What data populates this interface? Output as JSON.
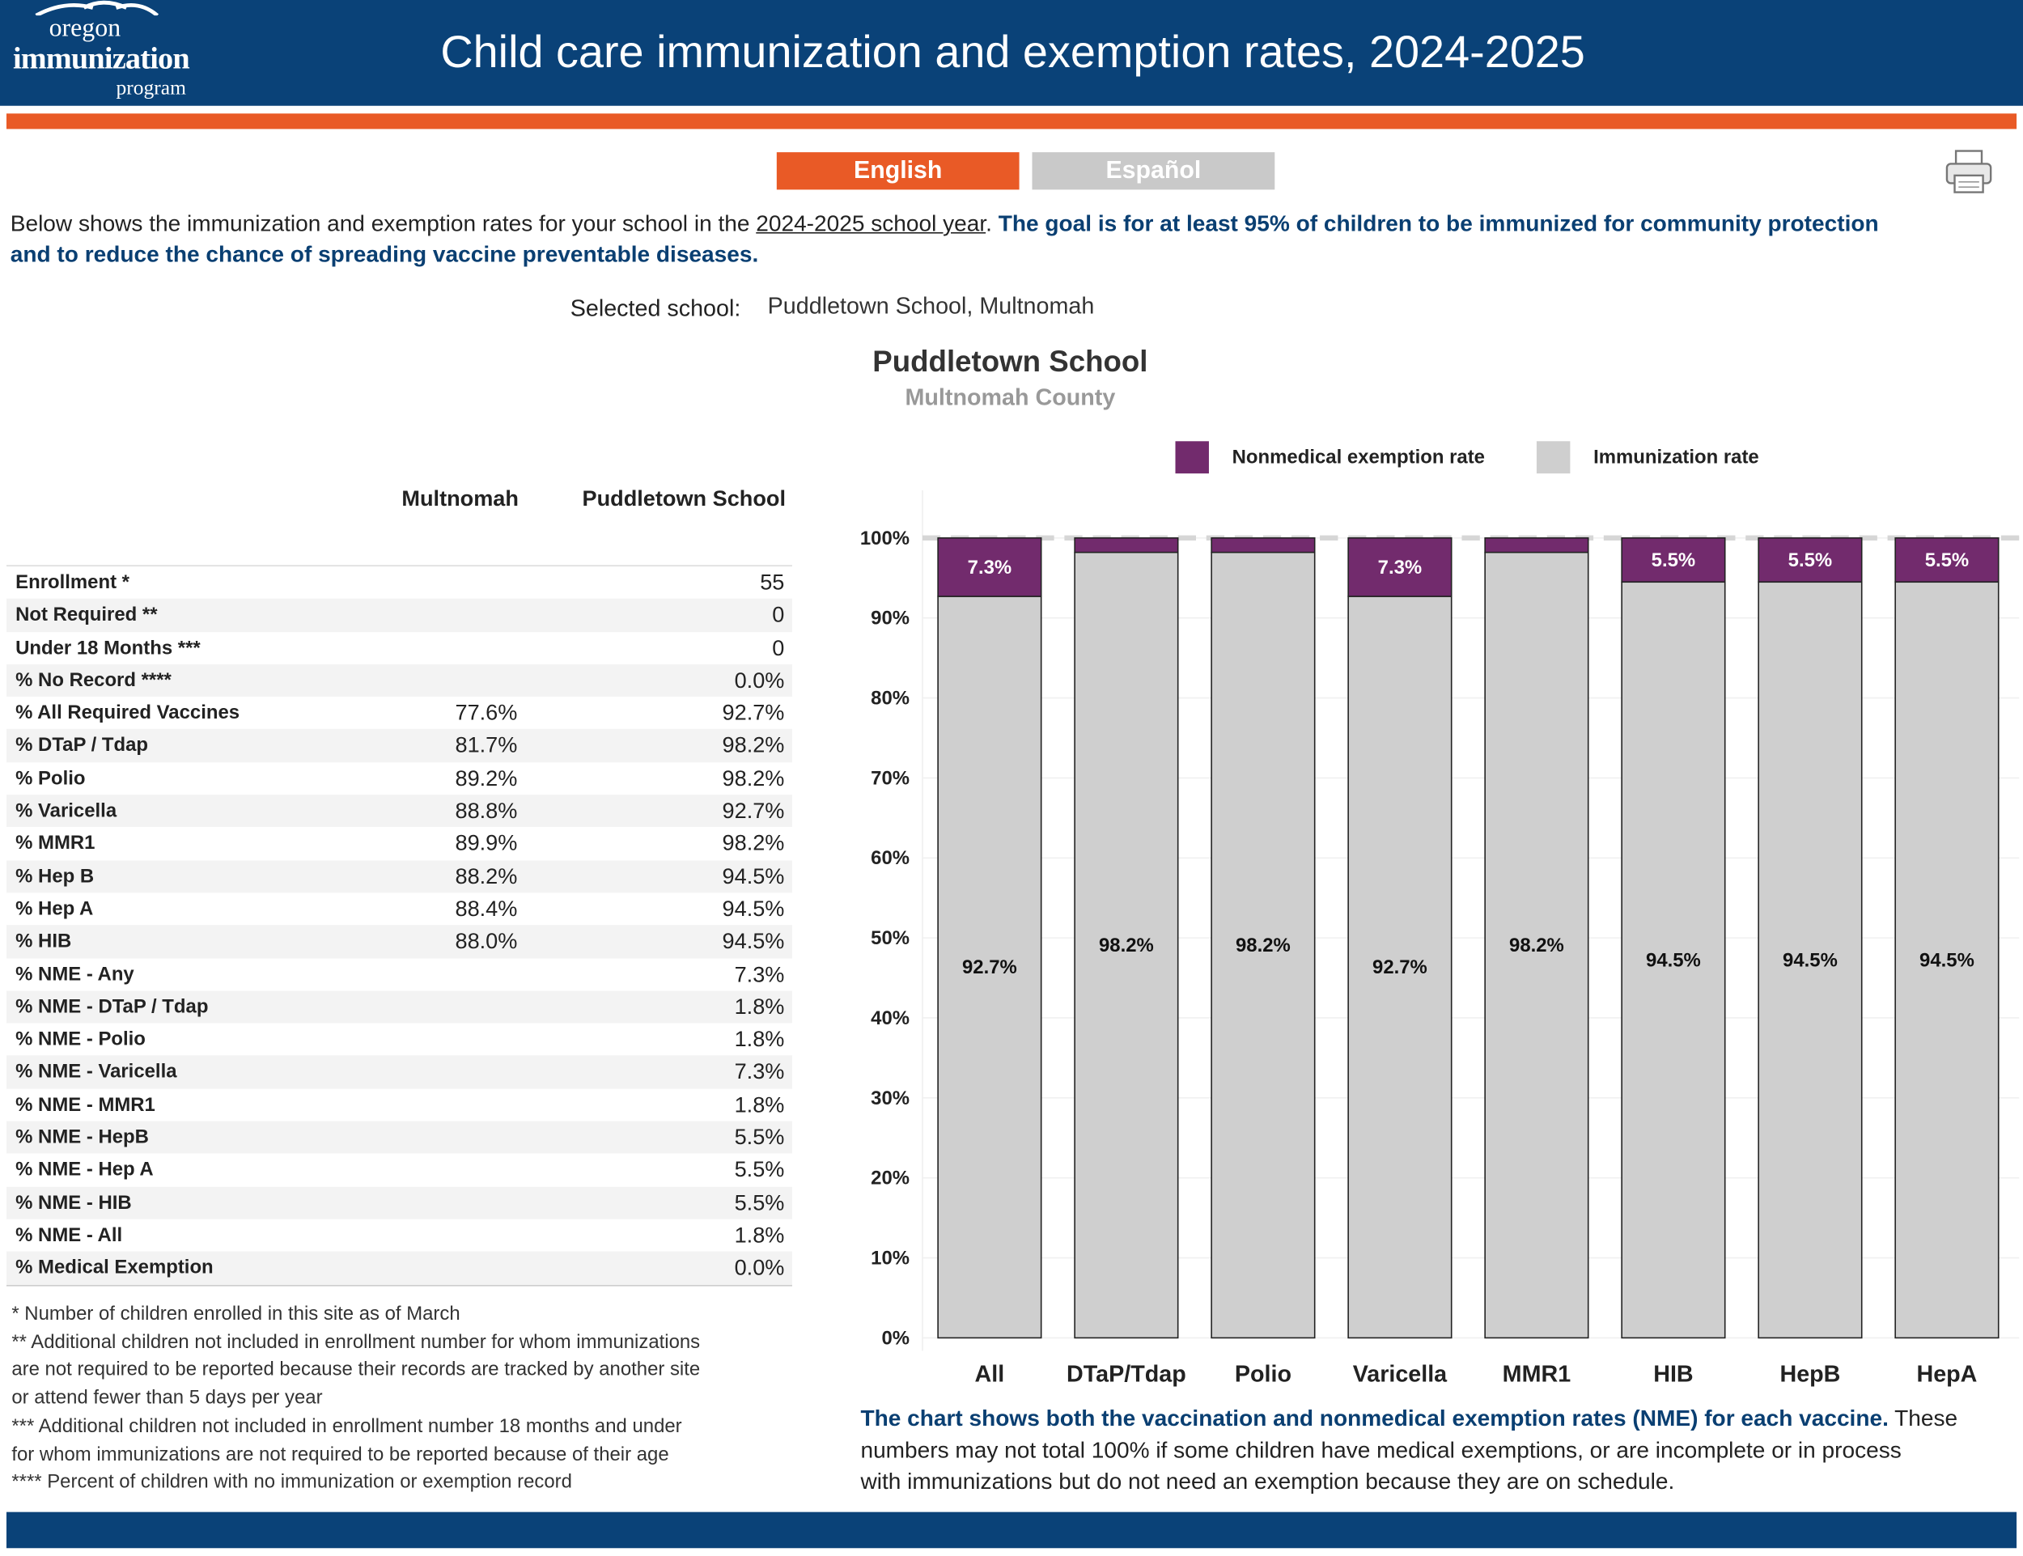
{
  "header": {
    "logo_text": [
      "oregon",
      "immunization",
      "program"
    ],
    "title": "Child care immunization and exemption rates, 2024-2025",
    "color": "#0a4278",
    "accent": "#e95a26"
  },
  "language": {
    "english": "English",
    "spanish": "Español"
  },
  "toolbar": {
    "print_icon": "printer-icon"
  },
  "intro": {
    "line1_a": "Below shows the immunization and exemption rates for your school in the ",
    "line1_link": "2024-2025 school year",
    "line1_b": ". ",
    "line1_goal": "The goal is for at least 95% of children to be immunized for community protection",
    "line2_goal": "and to reduce the chance of spreading vaccine preventable diseases."
  },
  "selection": {
    "label": "Selected school:",
    "value": "Puddletown School, Multnomah"
  },
  "school": {
    "name": "Puddletown School",
    "county": "Multnomah County"
  },
  "legend": [
    {
      "label": "Nonmedical exemption rate",
      "color": "#722b6d"
    },
    {
      "label": "Immunization rate",
      "color": "#cfcfcf"
    }
  ],
  "table": {
    "columns": [
      "Multnomah",
      "Puddletown School"
    ],
    "rows": [
      {
        "label": "Enrollment *",
        "county": "",
        "school": "55"
      },
      {
        "label": "Not Required **",
        "county": "",
        "school": "0"
      },
      {
        "label": "Under 18 Months ***",
        "county": "",
        "school": "0"
      },
      {
        "label": "% No Record ****",
        "county": "",
        "school": "0.0%"
      },
      {
        "label": "% All Required Vaccines",
        "county": "77.6%",
        "school": "92.7%"
      },
      {
        "label": "% DTaP / Tdap",
        "county": "81.7%",
        "school": "98.2%"
      },
      {
        "label": "% Polio",
        "county": "89.2%",
        "school": "98.2%"
      },
      {
        "label": "% Varicella",
        "county": "88.8%",
        "school": "92.7%"
      },
      {
        "label": "% MMR1",
        "county": "89.9%",
        "school": "98.2%"
      },
      {
        "label": "% Hep B",
        "county": "88.2%",
        "school": "94.5%"
      },
      {
        "label": "% Hep A",
        "county": "88.4%",
        "school": "94.5%"
      },
      {
        "label": "% HIB",
        "county": "88.0%",
        "school": "94.5%"
      },
      {
        "label": "% NME - Any",
        "county": "",
        "school": "7.3%"
      },
      {
        "label": "% NME - DTaP / Tdap",
        "county": "",
        "school": "1.8%"
      },
      {
        "label": "% NME - Polio",
        "county": "",
        "school": "1.8%"
      },
      {
        "label": "% NME - Varicella",
        "county": "",
        "school": "7.3%"
      },
      {
        "label": "% NME - MMR1",
        "county": "",
        "school": "1.8%"
      },
      {
        "label": "% NME - HepB",
        "county": "",
        "school": "5.5%"
      },
      {
        "label": "% NME - Hep A",
        "county": "",
        "school": "5.5%"
      },
      {
        "label": "% NME - HIB",
        "county": "",
        "school": "5.5%"
      },
      {
        "label": "% NME - All",
        "county": "",
        "school": "1.8%"
      },
      {
        "label": "% Medical Exemption",
        "county": "",
        "school": "0.0%"
      }
    ]
  },
  "footnotes": [
    "* Number of children enrolled in this site as of March",
    "** Additional children not included in enrollment number for whom immunizations",
    "are not required to be reported because their records are tracked by another site",
    "or attend fewer than 5 days per year",
    "*** Additional children not included in enrollment number 18 months and under",
    "for whom immunizations are not required to be reported because of their age",
    "**** Percent of children with no immunization or exemption record"
  ],
  "chart_data": {
    "type": "bar",
    "stacked": true,
    "categories": [
      "All",
      "DTaP/Tdap",
      "Polio",
      "Varicella",
      "MMR1",
      "HIB",
      "HepB",
      "HepA"
    ],
    "series": [
      {
        "name": "Immunization rate",
        "color": "#cfcfcf",
        "values": [
          92.7,
          98.2,
          98.2,
          92.7,
          98.2,
          94.5,
          94.5,
          94.5
        ],
        "labels": [
          "92.7%",
          "98.2%",
          "98.2%",
          "92.7%",
          "98.2%",
          "94.5%",
          "94.5%",
          "94.5%"
        ]
      },
      {
        "name": "Nonmedical exemption rate",
        "color": "#722b6d",
        "values": [
          7.3,
          1.8,
          1.8,
          7.3,
          1.8,
          5.5,
          5.5,
          5.5
        ],
        "labels": [
          "7.3%",
          "",
          "",
          "7.3%",
          "",
          "5.5%",
          "5.5%",
          "5.5%"
        ]
      }
    ],
    "yticks": [
      "0%",
      "10%",
      "20%",
      "30%",
      "40%",
      "50%",
      "60%",
      "70%",
      "80%",
      "90%",
      "100%"
    ],
    "ylim": [
      0,
      100
    ],
    "reference_line": 100,
    "grid": true,
    "legend_position": "top"
  },
  "bottom_note": {
    "line1_goal": "The chart shows both the vaccination and nonmedical exemption rates (NME) for each vaccine.",
    "line1_b": " These",
    "line2": "numbers may not total 100% if some children have medical exemptions, or are incomplete or in process",
    "line3": "with immunizations but do not need an exemption because they are on schedule."
  }
}
